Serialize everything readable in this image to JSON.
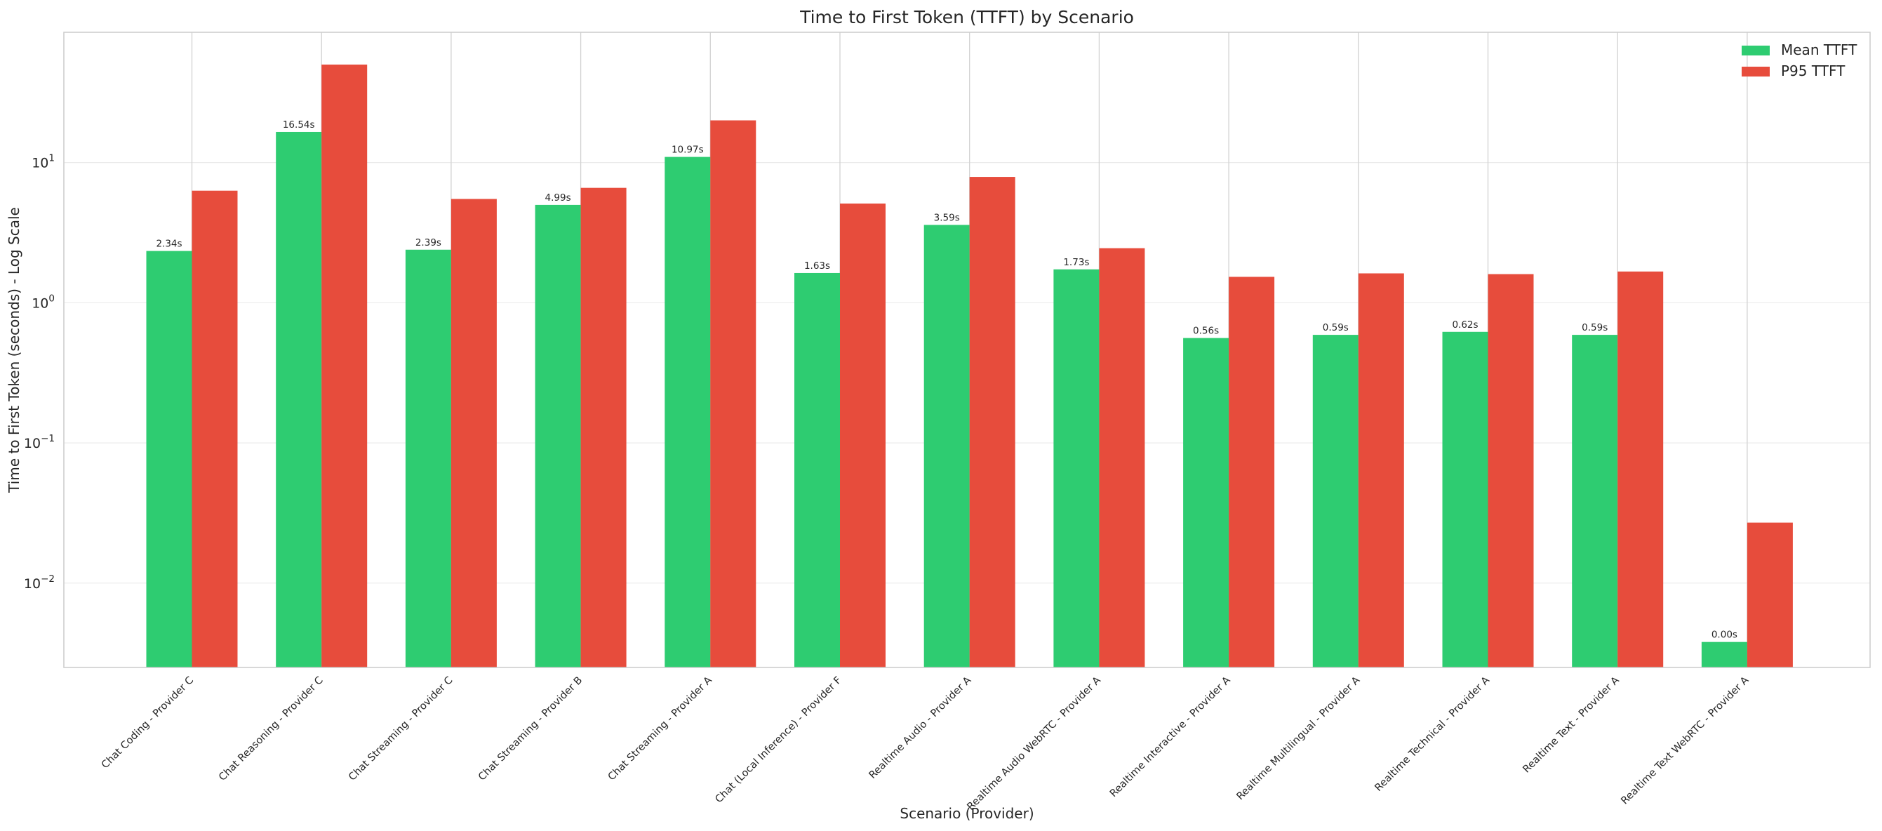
{
  "chart_data": {
    "type": "bar",
    "title": "Time to First Token (TTFT) by Scenario",
    "xlabel": "Scenario (Provider)",
    "ylabel": "Time to First Token (seconds) - Log Scale",
    "yscale": "log",
    "ylim": [
      0.0025,
      85
    ],
    "yticks": [
      {
        "value": 0.01,
        "base": "10",
        "exp": "−2"
      },
      {
        "value": 0.1,
        "base": "10",
        "exp": "−1"
      },
      {
        "value": 1,
        "base": "10",
        "exp": "0"
      },
      {
        "value": 10,
        "base": "10",
        "exp": "1"
      }
    ],
    "grid": true,
    "legend_position": "top-right",
    "categories": [
      "Chat Coding - Provider C",
      "Chat Reasoning - Provider C",
      "Chat Streaming - Provider C",
      "Chat Streaming - Provider B",
      "Chat Streaming - Provider A",
      "Chat (Local Inference) - Provider F",
      "Realtime Audio - Provider A",
      "Realtime Audio WebRTC - Provider A",
      "Realtime Interactive - Provider A",
      "Realtime Multilingual - Provider A",
      "Realtime Technical - Provider A",
      "Realtime Text - Provider A",
      "Realtime Text WebRTC - Provider A"
    ],
    "series": [
      {
        "name": "Mean TTFT",
        "color": "#2ecc71",
        "values": [
          2.34,
          16.54,
          2.39,
          4.99,
          10.97,
          1.63,
          3.59,
          1.73,
          0.56,
          0.59,
          0.62,
          0.59,
          0.0038
        ],
        "data_labels": [
          "2.34s",
          "16.54s",
          "2.39s",
          "4.99s",
          "10.97s",
          "1.63s",
          "3.59s",
          "1.73s",
          "0.56s",
          "0.59s",
          "0.62s",
          "0.59s",
          "0.00s"
        ]
      },
      {
        "name": "P95 TTFT",
        "color": "#e74c3c",
        "values": [
          6.3,
          50,
          5.5,
          6.6,
          20,
          5.1,
          7.9,
          2.45,
          1.53,
          1.62,
          1.6,
          1.67,
          0.027
        ]
      }
    ]
  }
}
